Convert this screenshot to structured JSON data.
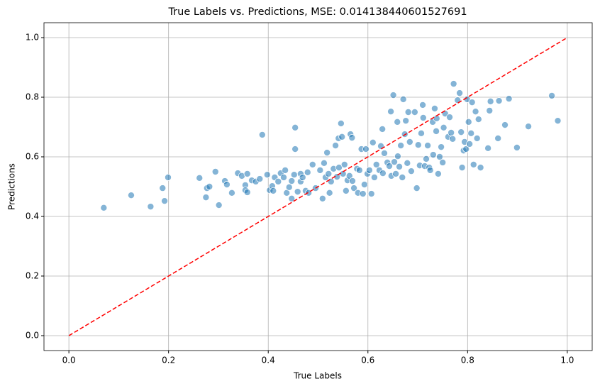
{
  "chart_data": {
    "type": "scatter",
    "title": "True Labels vs. Predictions, MSE: 0.014138440601527691",
    "x_label": "True Labels",
    "y_label": "Predictions",
    "xlim": [
      -0.05,
      1.05
    ],
    "ylim": [
      -0.05,
      1.05
    ],
    "xticks": [
      {
        "value": 0,
        "label": "0.0"
      },
      {
        "value": 0.2,
        "label": "0.2"
      },
      {
        "value": 0.4,
        "label": "0.4"
      },
      {
        "value": 0.6,
        "label": "0.6"
      },
      {
        "value": 0.8,
        "label": "0.8"
      },
      {
        "value": 1,
        "label": "1.0"
      }
    ],
    "yticks": [
      {
        "value": 0,
        "label": "0.0"
      },
      {
        "value": 0.2,
        "label": "0.2"
      },
      {
        "value": 0.4,
        "label": "0.4"
      },
      {
        "value": 0.6,
        "label": "0.6"
      },
      {
        "value": 0.8,
        "label": "0.8"
      },
      {
        "value": 1,
        "label": "1.0"
      }
    ],
    "grid": true,
    "series": [
      {
        "color": "#1f77b4",
        "style": "points",
        "x": [
          0.07,
          0.125,
          0.164,
          0.188,
          0.192,
          0.199,
          0.262,
          0.275,
          0.277,
          0.282,
          0.294,
          0.301,
          0.313,
          0.317,
          0.327,
          0.339,
          0.347,
          0.354,
          0.354,
          0.358,
          0.358,
          0.367,
          0.375,
          0.388,
          0.383,
          0.398,
          0.403,
          0.408,
          0.41,
          0.413,
          0.42,
          0.425,
          0.431,
          0.434,
          0.437,
          0.442,
          0.447,
          0.447,
          0.454,
          0.454,
          0.452,
          0.459,
          0.465,
          0.465,
          0.469,
          0.475,
          0.479,
          0.481,
          0.489,
          0.495,
          0.504,
          0.509,
          0.512,
          0.515,
          0.518,
          0.521,
          0.523,
          0.526,
          0.531,
          0.535,
          0.538,
          0.541,
          0.542,
          0.546,
          0.548,
          0.55,
          0.553,
          0.556,
          0.559,
          0.563,
          0.565,
          0.568,
          0.569,
          0.572,
          0.578,
          0.58,
          0.583,
          0.587,
          0.59,
          0.593,
          0.596,
          0.599,
          0.603,
          0.607,
          0.61,
          0.613,
          0.617,
          0.623,
          0.626,
          0.629,
          0.63,
          0.633,
          0.639,
          0.643,
          0.646,
          0.647,
          0.651,
          0.653,
          0.656,
          0.659,
          0.66,
          0.663,
          0.666,
          0.669,
          0.671,
          0.674,
          0.676,
          0.679,
          0.681,
          0.684,
          0.687,
          0.694,
          0.698,
          0.701,
          0.704,
          0.707,
          0.71,
          0.711,
          0.714,
          0.717,
          0.72,
          0.723,
          0.725,
          0.73,
          0.731,
          0.734,
          0.737,
          0.738,
          0.741,
          0.744,
          0.747,
          0.75,
          0.752,
          0.755,
          0.761,
          0.764,
          0.767,
          0.77,
          0.772,
          0.78,
          0.784,
          0.787,
          0.789,
          0.792,
          0.794,
          0.797,
          0.799,
          0.802,
          0.804,
          0.807,
          0.809,
          0.812,
          0.816,
          0.819,
          0.822,
          0.826,
          0.841,
          0.844,
          0.846,
          0.861,
          0.863,
          0.875,
          0.883,
          0.899,
          0.922,
          0.969,
          0.981
        ],
        "values": [
          0.429,
          0.471,
          0.433,
          0.495,
          0.452,
          0.531,
          0.529,
          0.464,
          0.495,
          0.5,
          0.55,
          0.438,
          0.519,
          0.507,
          0.479,
          0.545,
          0.536,
          0.505,
          0.488,
          0.481,
          0.543,
          0.521,
          0.517,
          0.674,
          0.526,
          0.54,
          0.488,
          0.502,
          0.486,
          0.531,
          0.517,
          0.545,
          0.531,
          0.555,
          0.479,
          0.498,
          0.519,
          0.46,
          0.698,
          0.626,
          0.54,
          0.483,
          0.517,
          0.543,
          0.531,
          0.486,
          0.548,
          0.479,
          0.574,
          0.495,
          0.555,
          0.46,
          0.579,
          0.531,
          0.614,
          0.543,
          0.479,
          0.517,
          0.56,
          0.638,
          0.533,
          0.662,
          0.564,
          0.712,
          0.667,
          0.543,
          0.574,
          0.486,
          0.521,
          0.536,
          0.676,
          0.664,
          0.519,
          0.495,
          0.56,
          0.479,
          0.555,
          0.626,
          0.476,
          0.507,
          0.626,
          0.543,
          0.555,
          0.476,
          0.648,
          0.531,
          0.574,
          0.555,
          0.636,
          0.693,
          0.545,
          0.612,
          0.581,
          0.569,
          0.752,
          0.536,
          0.807,
          0.583,
          0.543,
          0.717,
          0.602,
          0.567,
          0.638,
          0.531,
          0.793,
          0.676,
          0.721,
          0.579,
          0.75,
          0.65,
          0.552,
          0.75,
          0.495,
          0.64,
          0.571,
          0.679,
          0.774,
          0.731,
          0.569,
          0.593,
          0.638,
          0.564,
          0.555,
          0.717,
          0.607,
          0.762,
          0.686,
          0.729,
          0.543,
          0.6,
          0.633,
          0.581,
          0.698,
          0.745,
          0.667,
          0.733,
          0.681,
          0.66,
          0.845,
          0.79,
          0.814,
          0.683,
          0.564,
          0.621,
          0.65,
          0.626,
          0.793,
          0.717,
          0.643,
          0.679,
          0.783,
          0.574,
          0.752,
          0.662,
          0.726,
          0.564,
          0.629,
          0.755,
          0.786,
          0.662,
          0.788,
          0.707,
          0.795,
          0.631,
          0.702,
          0.805,
          0.721
        ]
      },
      {
        "color": "#ff0000",
        "style": "dashed",
        "x": [
          0,
          1
        ],
        "values": [
          0,
          1
        ]
      }
    ]
  }
}
